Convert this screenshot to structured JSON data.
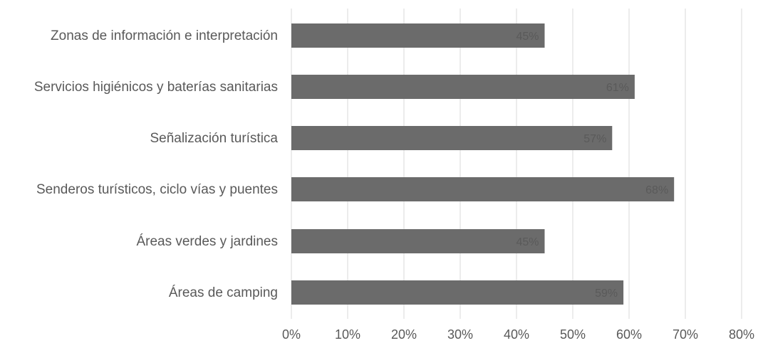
{
  "chart_data": {
    "type": "bar",
    "orientation": "horizontal",
    "categories": [
      "Zonas de información e interpretación",
      "Servicios higiénicos y baterías sanitarias",
      "Señalización turística",
      "Senderos turísticos, ciclo vías y puentes",
      "Áreas verdes y jardines",
      "Áreas de camping"
    ],
    "values": [
      45,
      61,
      57,
      68,
      45,
      59
    ],
    "data_labels": [
      "45%",
      "61%",
      "57%",
      "68%",
      "45%",
      "59%"
    ],
    "xlim": [
      0,
      80
    ],
    "x_ticks": [
      "0%",
      "10%",
      "20%",
      "30%",
      "40%",
      "50%",
      "60%",
      "70%",
      "80%"
    ],
    "grid": "vertical",
    "legend": "none",
    "title": "",
    "xlabel": "",
    "ylabel": "",
    "colors": {
      "bar": "#6b6b6b",
      "grid": "#d9d9d9",
      "text": "#595959"
    }
  }
}
